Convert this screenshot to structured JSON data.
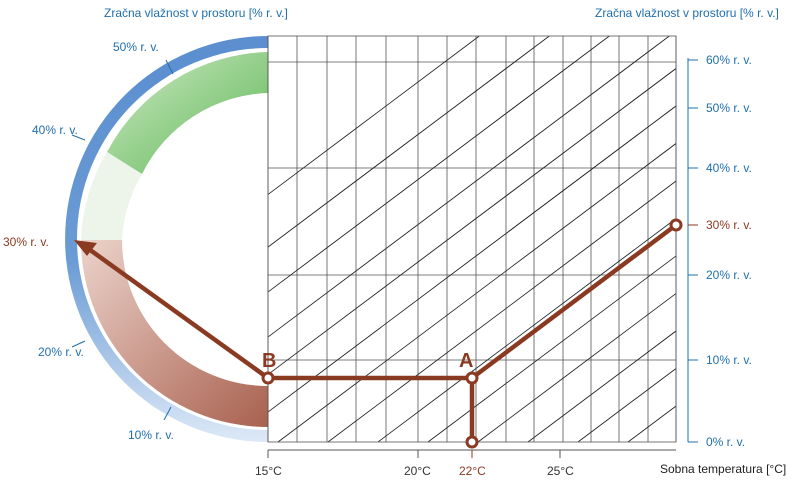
{
  "colors": {
    "blue": "#1f6fad",
    "blue_ring": "#6a9bd4",
    "red_brown": "#8b3a22",
    "grid": "#555555",
    "green": "#6bbd63",
    "pink": "#b97a6a",
    "ring_white_mid": "#eef4ec"
  },
  "header": {
    "left_title": "Zračna vlažnost v prostoru [% r. v.]",
    "right_title": "Zračna vlažnost v prostoru [% r. v.]"
  },
  "ring_labels": {
    "rh50": "50% r. v.",
    "rh40": "40% r. v.",
    "rh30": "30% r. v.",
    "rh20": "20% r. v.",
    "rh10": "10% r. v."
  },
  "right_axis_ticks": [
    {
      "value": "60% r. v.",
      "highlight": false
    },
    {
      "value": "50% r. v.",
      "highlight": false
    },
    {
      "value": "40% r. v.",
      "highlight": false
    },
    {
      "value": "30% r. v.",
      "highlight": true
    },
    {
      "value": "20% r. v.",
      "highlight": false
    },
    {
      "value": "10% r. v.",
      "highlight": false
    },
    {
      "value": "0% r. v.",
      "highlight": false
    }
  ],
  "bottom_axis": {
    "ticks": [
      {
        "label": "15°C",
        "highlight": false
      },
      {
        "label": "20°C",
        "highlight": false
      },
      {
        "label": "22°C",
        "highlight": true
      },
      {
        "label": "25°C",
        "highlight": false
      }
    ],
    "title": "Sobna temperatura [°C]"
  },
  "points": {
    "a_label": "A",
    "b_label": "B"
  }
}
